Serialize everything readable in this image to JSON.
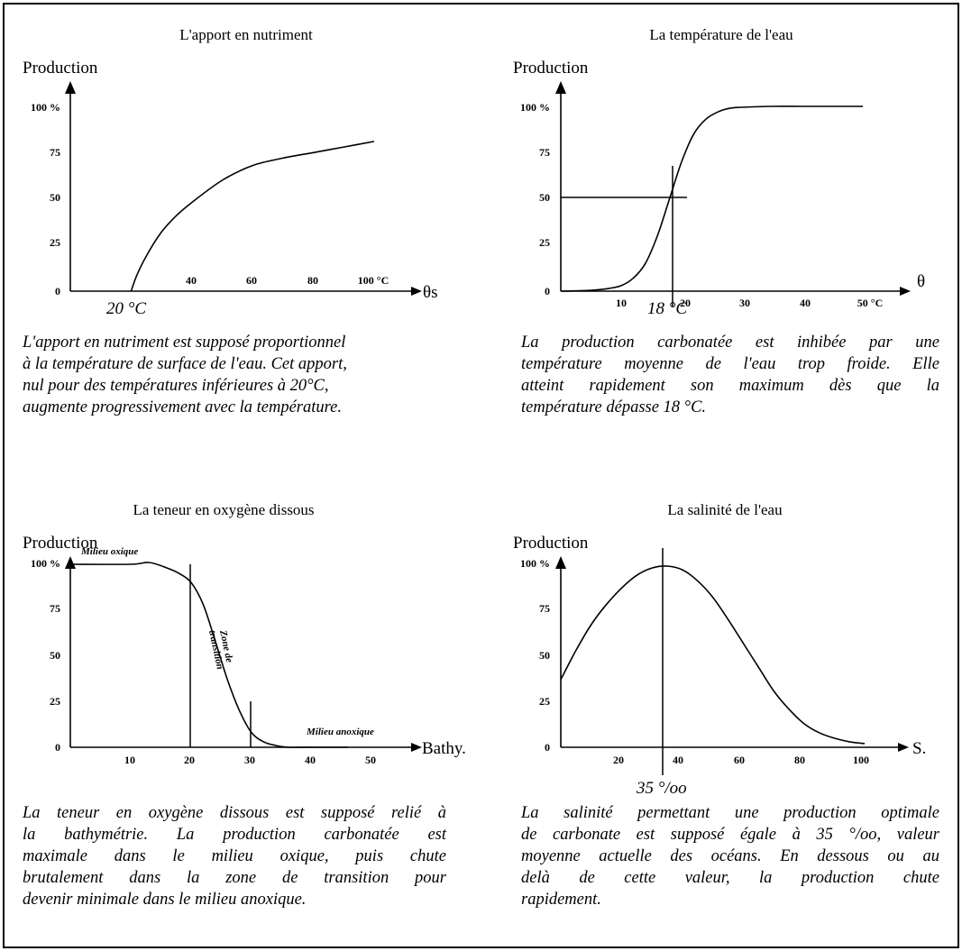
{
  "chart_data": [
    {
      "type": "line",
      "title": "L'apport en nutriment",
      "ylabel": "Production",
      "xlabel": "θs",
      "y_ticks": [
        "0",
        "25",
        "50",
        "75",
        "100 %"
      ],
      "x_ticks": [
        "40",
        "60",
        "80",
        "100 °C"
      ],
      "x_marker_label": "20 °C",
      "xlim": [
        0,
        105
      ],
      "ylim": [
        0,
        100
      ],
      "series": [
        {
          "x": [
            20,
            22,
            25,
            30,
            35,
            40,
            50,
            60,
            70,
            80,
            90,
            100
          ],
          "y": [
            0,
            9,
            19,
            32,
            41,
            48,
            60,
            68,
            72,
            75,
            78,
            81
          ]
        }
      ],
      "caption": [
        "L'apport en nutriment est supposé proportionnel",
        "à la température de surface de l'eau. Cet apport,",
        "nul pour des températures inférieures à 20°C,",
        "augmente progressivement avec la température."
      ]
    },
    {
      "type": "line",
      "title": "La température de l'eau",
      "ylabel": "Production",
      "xlabel": "θ",
      "y_ticks": [
        "0",
        "25",
        "50",
        "75",
        "100 %"
      ],
      "x_ticks": [
        "10",
        "20",
        "30",
        "40",
        "50 °C"
      ],
      "x_marker_label": "18 °C",
      "xlim": [
        0,
        55
      ],
      "ylim": [
        0,
        100
      ],
      "series": [
        {
          "x": [
            0,
            5,
            8,
            10,
            12,
            14,
            16,
            18,
            20,
            22,
            24,
            26,
            28,
            30,
            35,
            40,
            45,
            50
          ],
          "y": [
            0,
            0.5,
            1.5,
            3,
            7,
            15,
            30,
            50,
            70,
            85,
            93,
            97,
            99,
            99.5,
            100,
            100,
            100,
            100
          ]
        }
      ],
      "caption": [
        "La production carbonatée est inhibée par une",
        "température moyenne de l'eau trop froide. Elle",
        "atteint rapidement son maximum dès que la",
        "température dépasse 18 °C."
      ]
    },
    {
      "type": "line",
      "title": "La teneur en oxygène dissous",
      "ylabel": "Production",
      "xlabel": "Bathy.",
      "y_ticks": [
        "0",
        "25",
        "50",
        "75",
        "100 %"
      ],
      "x_ticks": [
        "10",
        "20",
        "30",
        "40",
        "50"
      ],
      "annotations": [
        "Milieu oxique",
        "Zone de",
        "transition",
        "Milieu anoxique"
      ],
      "xlim": [
        0,
        53
      ],
      "ylim": [
        0,
        100
      ],
      "series": [
        {
          "x": [
            0,
            10,
            13,
            16,
            18,
            20,
            22,
            24,
            26,
            28,
            30,
            32,
            34,
            36,
            40,
            46
          ],
          "y": [
            100,
            100,
            101,
            98,
            95,
            90,
            78,
            58,
            37,
            20,
            8,
            3,
            1,
            0,
            0,
            0
          ]
        }
      ],
      "caption": [
        "La teneur en oxygène dissous est supposé relié à",
        "la bathymétrie. La production carbonatée est",
        "maximale dans le milieu oxique, puis chute",
        "brutalement dans la zone de transition pour",
        "devenir minimale dans le milieu anoxique."
      ]
    },
    {
      "type": "line",
      "title": "La salinité de l'eau",
      "ylabel": "Production",
      "xlabel": "S.",
      "y_ticks": [
        "0",
        "25",
        "50",
        "75",
        "100 %"
      ],
      "x_ticks": [
        "20",
        "40",
        "60",
        "80",
        "100"
      ],
      "x_marker_label": "35 °/oo",
      "xlim": [
        0,
        110
      ],
      "ylim": [
        0,
        100
      ],
      "series": [
        {
          "x": [
            0,
            5,
            10,
            15,
            20,
            25,
            30,
            35,
            40,
            45,
            50,
            55,
            60,
            65,
            70,
            75,
            80,
            85,
            90,
            95,
            100
          ],
          "y": [
            37,
            53,
            67,
            78,
            87,
            94,
            98,
            99,
            97,
            91,
            82,
            70,
            57,
            44,
            31,
            21,
            13,
            8,
            5,
            3,
            2
          ]
        }
      ],
      "caption": [
        "La salinité permettant une production optimale",
        "de carbonate est supposé égale à 35 °/oo, valeur",
        "moyenne actuelle des océans. En dessous ou au",
        "delà de cette valeur, la production chute",
        "rapidement."
      ]
    }
  ]
}
